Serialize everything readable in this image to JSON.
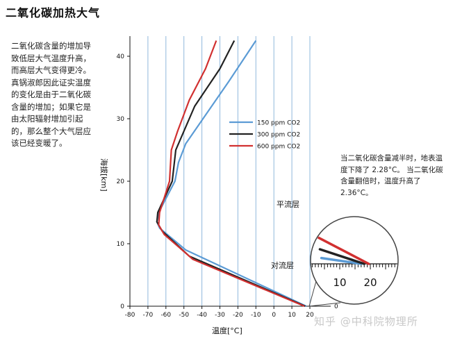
{
  "page": {
    "title": "二氧化碳加热大气",
    "intro": "二氧化碳含量的增加导致低层大气温度升高，而高层大气变得更冷。真锅淑郎因此证实温度的变化是由于二氧化碳含量的增加；如果它是由太阳辐射增加引起的，那么整个大气层应该已经变暖了。",
    "note": "当二氧化碳含量减半时，地表温度下降了 2.28°C。 当二氧化碳含量翻倍时，温度升高了 2.36°C。",
    "watermark": "知乎 @中科院物理所"
  },
  "colors": {
    "series150": "#5b9bd5",
    "series300": "#222222",
    "series600": "#d13030",
    "grid": "#8fb8dc"
  },
  "chart_data": {
    "type": "line",
    "xlabel": "温度[°C]",
    "ylabel": "海拔[km]",
    "xlim": [
      -80,
      20
    ],
    "ylim": [
      0,
      42
    ],
    "xticks": [
      -80,
      -70,
      -60,
      -50,
      -40,
      -30,
      -20,
      -10,
      0,
      10,
      20
    ],
    "yticks": [
      0,
      10,
      20,
      30,
      40
    ],
    "grid": "vertical",
    "legend": "center-right",
    "annotations": [
      "平流层",
      "对流层"
    ],
    "series": [
      {
        "name": "150 ppm CO2",
        "color": "#5b9bd5",
        "points": [
          [
            18,
            0
          ],
          [
            -49,
            9
          ],
          [
            -63.5,
            12.5
          ],
          [
            -65,
            13.5
          ],
          [
            -64,
            15
          ],
          [
            -55,
            20
          ],
          [
            -53,
            23
          ],
          [
            -49,
            26
          ],
          [
            -37,
            31
          ],
          [
            -25,
            36
          ],
          [
            -10,
            42.5
          ]
        ]
      },
      {
        "name": "300 ppm CO2",
        "color": "#222222",
        "points": [
          [
            17.5,
            0
          ],
          [
            -47,
            8
          ],
          [
            -62,
            12
          ],
          [
            -65,
            13.5
          ],
          [
            -64.5,
            15
          ],
          [
            -56.5,
            20
          ],
          [
            -54.5,
            25
          ],
          [
            -53,
            26
          ],
          [
            -44,
            32
          ],
          [
            -30,
            38
          ],
          [
            -22,
            42.5
          ]
        ]
      },
      {
        "name": "600 ppm CO2",
        "color": "#d13030",
        "points": [
          [
            17,
            0
          ],
          [
            -45,
            7.5
          ],
          [
            -61,
            11.5
          ],
          [
            -64,
            13
          ],
          [
            -63.5,
            15
          ],
          [
            -58,
            20
          ],
          [
            -57,
            25
          ],
          [
            -53.5,
            28
          ],
          [
            -47,
            33
          ],
          [
            -38,
            38
          ],
          [
            -32,
            42.5
          ]
        ]
      }
    ],
    "inset": {
      "xticks": [
        10,
        20
      ],
      "lines": [
        {
          "color": "#5b9bd5",
          "x1": 4,
          "y1": 0.2,
          "x2": 17,
          "y2": -0.8
        },
        {
          "color": "#222222",
          "x1": 3.5,
          "y1": 0.5,
          "x2": 18,
          "y2": -0.8
        },
        {
          "color": "#d13030",
          "x1": 3,
          "y1": 0.9,
          "x2": 19.5,
          "y2": -0.8
        }
      ]
    }
  }
}
